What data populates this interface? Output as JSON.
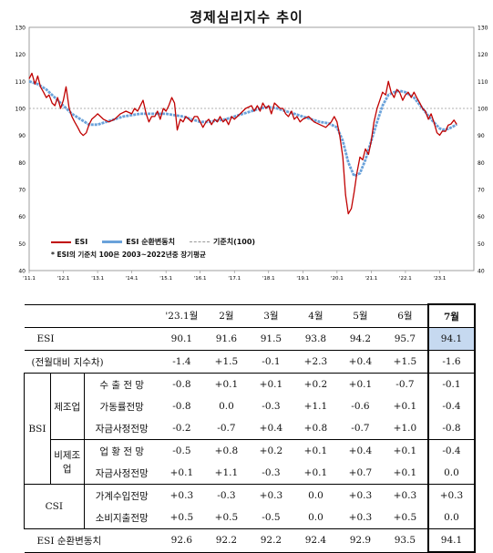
{
  "chart_data": {
    "type": "line",
    "title": "경제심리지수 추이",
    "ylim": [
      40,
      130
    ],
    "yticks": [
      40,
      50,
      60,
      70,
      80,
      90,
      100,
      110,
      120,
      130
    ],
    "xtick_labels": [
      "'11.1",
      "'12.1",
      "'13.1",
      "'14.1",
      "'15.1",
      "'16.1",
      "'17.1",
      "'18.1",
      "'19.1",
      "'20.1",
      "'21.1",
      "'22.1",
      "'23.1"
    ],
    "x_start": 2011.0,
    "x_end": 2024.0,
    "reference_line": 100,
    "legend": [
      "ESI",
      "ESI 순환변동치",
      "기준치(100)"
    ],
    "note": "* ESI의 기준치 100은 2003~2022년중 장기평균",
    "series": [
      {
        "name": "ESI",
        "color": "#c00000",
        "points": [
          [
            2011.0,
            111
          ],
          [
            2011.08,
            113
          ],
          [
            2011.17,
            109
          ],
          [
            2011.25,
            112
          ],
          [
            2011.33,
            108
          ],
          [
            2011.42,
            106
          ],
          [
            2011.5,
            104
          ],
          [
            2011.58,
            105
          ],
          [
            2011.67,
            102
          ],
          [
            2011.75,
            101
          ],
          [
            2011.83,
            104
          ],
          [
            2011.92,
            100
          ],
          [
            2012.0,
            103
          ],
          [
            2012.08,
            108
          ],
          [
            2012.17,
            100
          ],
          [
            2012.25,
            97
          ],
          [
            2012.33,
            95
          ],
          [
            2012.42,
            93
          ],
          [
            2012.5,
            91
          ],
          [
            2012.58,
            90
          ],
          [
            2012.67,
            91
          ],
          [
            2012.75,
            94
          ],
          [
            2012.83,
            96
          ],
          [
            2012.92,
            97
          ],
          [
            2013.0,
            98
          ],
          [
            2013.17,
            96
          ],
          [
            2013.33,
            95
          ],
          [
            2013.5,
            96
          ],
          [
            2013.67,
            98
          ],
          [
            2013.83,
            99
          ],
          [
            2014.0,
            98
          ],
          [
            2014.08,
            100
          ],
          [
            2014.17,
            99
          ],
          [
            2014.25,
            101
          ],
          [
            2014.33,
            103
          ],
          [
            2014.42,
            98
          ],
          [
            2014.5,
            95
          ],
          [
            2014.58,
            97
          ],
          [
            2014.67,
            97
          ],
          [
            2014.75,
            99
          ],
          [
            2014.83,
            96
          ],
          [
            2014.92,
            100
          ],
          [
            2015.0,
            99
          ],
          [
            2015.08,
            101
          ],
          [
            2015.17,
            104
          ],
          [
            2015.25,
            102
          ],
          [
            2015.33,
            92
          ],
          [
            2015.42,
            96
          ],
          [
            2015.5,
            95
          ],
          [
            2015.58,
            97
          ],
          [
            2015.67,
            96
          ],
          [
            2015.75,
            95
          ],
          [
            2015.83,
            97
          ],
          [
            2015.92,
            97
          ],
          [
            2016.0,
            95
          ],
          [
            2016.08,
            93
          ],
          [
            2016.17,
            95
          ],
          [
            2016.25,
            96
          ],
          [
            2016.33,
            94
          ],
          [
            2016.42,
            96
          ],
          [
            2016.5,
            95
          ],
          [
            2016.58,
            97
          ],
          [
            2016.67,
            95
          ],
          [
            2016.75,
            96
          ],
          [
            2016.83,
            94
          ],
          [
            2016.92,
            97
          ],
          [
            2017.0,
            96
          ],
          [
            2017.17,
            98
          ],
          [
            2017.33,
            100
          ],
          [
            2017.5,
            101
          ],
          [
            2017.58,
            99
          ],
          [
            2017.67,
            101
          ],
          [
            2017.75,
            99
          ],
          [
            2017.83,
            102
          ],
          [
            2017.92,
            100
          ],
          [
            2018.0,
            101
          ],
          [
            2018.08,
            98
          ],
          [
            2018.17,
            102
          ],
          [
            2018.25,
            101
          ],
          [
            2018.33,
            100
          ],
          [
            2018.42,
            100
          ],
          [
            2018.5,
            98
          ],
          [
            2018.58,
            97
          ],
          [
            2018.67,
            99
          ],
          [
            2018.75,
            96
          ],
          [
            2018.83,
            97
          ],
          [
            2018.92,
            95
          ],
          [
            2019.0,
            96
          ],
          [
            2019.17,
            97
          ],
          [
            2019.33,
            95
          ],
          [
            2019.5,
            94
          ],
          [
            2019.67,
            93
          ],
          [
            2019.83,
            95
          ],
          [
            2019.92,
            97
          ],
          [
            2020.0,
            95
          ],
          [
            2020.08,
            90
          ],
          [
            2020.17,
            82
          ],
          [
            2020.25,
            68
          ],
          [
            2020.33,
            61
          ],
          [
            2020.42,
            63
          ],
          [
            2020.5,
            69
          ],
          [
            2020.58,
            76
          ],
          [
            2020.67,
            82
          ],
          [
            2020.75,
            81
          ],
          [
            2020.83,
            85
          ],
          [
            2020.92,
            83
          ],
          [
            2021.0,
            88
          ],
          [
            2021.08,
            95
          ],
          [
            2021.17,
            100
          ],
          [
            2021.25,
            103
          ],
          [
            2021.33,
            106
          ],
          [
            2021.42,
            105
          ],
          [
            2021.5,
            110
          ],
          [
            2021.58,
            106
          ],
          [
            2021.67,
            104
          ],
          [
            2021.75,
            107
          ],
          [
            2021.83,
            106
          ],
          [
            2021.92,
            103
          ],
          [
            2022.0,
            105
          ],
          [
            2022.08,
            106
          ],
          [
            2022.17,
            104
          ],
          [
            2022.25,
            106
          ],
          [
            2022.33,
            104
          ],
          [
            2022.42,
            102
          ],
          [
            2022.5,
            100
          ],
          [
            2022.58,
            99
          ],
          [
            2022.67,
            96
          ],
          [
            2022.75,
            98
          ],
          [
            2022.83,
            95
          ],
          [
            2022.92,
            91
          ],
          [
            2023.0,
            90.1
          ],
          [
            2023.08,
            91.6
          ],
          [
            2023.17,
            91.5
          ],
          [
            2023.25,
            93.8
          ],
          [
            2023.33,
            94.2
          ],
          [
            2023.42,
            95.7
          ],
          [
            2023.5,
            94.1
          ]
        ]
      },
      {
        "name": "ESI 순환변동치",
        "color": "#6aa2da",
        "points": [
          [
            2011.0,
            110
          ],
          [
            2011.25,
            109
          ],
          [
            2011.5,
            107
          ],
          [
            2011.75,
            104
          ],
          [
            2012.0,
            101
          ],
          [
            2012.25,
            98
          ],
          [
            2012.5,
            96
          ],
          [
            2012.75,
            94
          ],
          [
            2013.0,
            94
          ],
          [
            2013.25,
            95
          ],
          [
            2013.5,
            96
          ],
          [
            2013.75,
            97
          ],
          [
            2014.0,
            97.5
          ],
          [
            2014.25,
            98
          ],
          [
            2014.5,
            98
          ],
          [
            2014.75,
            98
          ],
          [
            2015.0,
            98
          ],
          [
            2015.25,
            97.5
          ],
          [
            2015.5,
            97
          ],
          [
            2015.75,
            96
          ],
          [
            2016.0,
            95
          ],
          [
            2016.25,
            95
          ],
          [
            2016.5,
            95.5
          ],
          [
            2016.75,
            96
          ],
          [
            2017.0,
            97
          ],
          [
            2017.25,
            98
          ],
          [
            2017.5,
            99
          ],
          [
            2017.75,
            100
          ],
          [
            2018.0,
            100.5
          ],
          [
            2018.25,
            100
          ],
          [
            2018.5,
            99
          ],
          [
            2018.75,
            98
          ],
          [
            2019.0,
            97
          ],
          [
            2019.25,
            96
          ],
          [
            2019.5,
            95
          ],
          [
            2019.75,
            94.5
          ],
          [
            2020.0,
            93
          ],
          [
            2020.17,
            88
          ],
          [
            2020.33,
            80
          ],
          [
            2020.5,
            75
          ],
          [
            2020.67,
            76
          ],
          [
            2020.83,
            81
          ],
          [
            2021.0,
            88
          ],
          [
            2021.17,
            95
          ],
          [
            2021.33,
            101
          ],
          [
            2021.5,
            105
          ],
          [
            2021.67,
            106
          ],
          [
            2021.83,
            106.5
          ],
          [
            2022.0,
            106
          ],
          [
            2022.25,
            104
          ],
          [
            2022.5,
            100
          ],
          [
            2022.75,
            96
          ],
          [
            2023.0,
            92.6
          ],
          [
            2023.08,
            92.2
          ],
          [
            2023.17,
            92.2
          ],
          [
            2023.25,
            92.4
          ],
          [
            2023.33,
            92.9
          ],
          [
            2023.42,
            93.5
          ],
          [
            2023.5,
            94.1
          ]
        ]
      }
    ]
  },
  "table": {
    "columns": [
      "'23.1월",
      "2월",
      "3월",
      "4월",
      "5월",
      "6월",
      "7월"
    ],
    "esi": {
      "label": "ESI",
      "values": [
        "90.1",
        "91.6",
        "91.5",
        "93.8",
        "94.2",
        "95.7",
        "94.1"
      ]
    },
    "change_label": "(전월대비 지수차)",
    "change": [
      "-1.4",
      "+1.5",
      "-0.1",
      "+2.3",
      "+0.4",
      "+1.5",
      "-1.6"
    ],
    "bsi_label": "BSI",
    "mfg_label": "제조업",
    "nonmfg_label": "비제조업",
    "csi_label": "CSI",
    "rows": [
      {
        "label": "수 출 전 망",
        "values": [
          "-0.8",
          "+0.1",
          "+0.1",
          "+0.2",
          "+0.1",
          "-0.7",
          "-0.1"
        ]
      },
      {
        "label": "가동률전망",
        "values": [
          "-0.8",
          "0.0",
          "-0.3",
          "+1.1",
          "-0.6",
          "+0.1",
          "-0.4"
        ]
      },
      {
        "label": "자금사정전망",
        "values": [
          "-0.2",
          "-0.7",
          "+0.4",
          "+0.8",
          "-0.7",
          "+1.0",
          "-0.8"
        ]
      },
      {
        "label": "업 황 전 망",
        "values": [
          "-0.5",
          "+0.8",
          "+0.2",
          "+0.1",
          "+0.4",
          "+0.1",
          "-0.4"
        ]
      },
      {
        "label": "자금사정전망",
        "values": [
          "+0.1",
          "+1.1",
          "-0.3",
          "+0.1",
          "+0.7",
          "+0.1",
          "0.0"
        ]
      },
      {
        "label": "가계수입전망",
        "values": [
          "+0.3",
          "-0.3",
          "+0.3",
          "0.0",
          "+0.3",
          "+0.3",
          "+0.3"
        ]
      },
      {
        "label": "소비지출전망",
        "values": [
          "+0.5",
          "+0.5",
          "-0.5",
          "0.0",
          "+0.3",
          "+0.5",
          "0.0"
        ]
      }
    ],
    "cycle": {
      "label": "ESI 순환변동치",
      "values": [
        "92.6",
        "92.2",
        "92.2",
        "92.4",
        "92.9",
        "93.5",
        "94.1"
      ]
    }
  }
}
